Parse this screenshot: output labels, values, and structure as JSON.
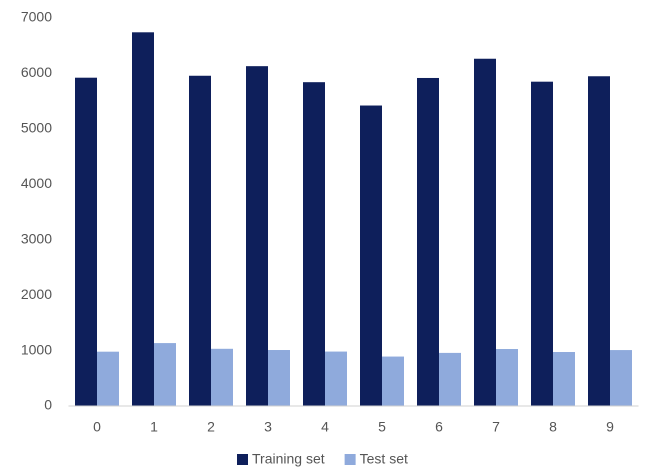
{
  "chart_data": {
    "type": "bar",
    "categories": [
      "0",
      "1",
      "2",
      "3",
      "4",
      "5",
      "6",
      "7",
      "8",
      "9"
    ],
    "series": [
      {
        "name": "Training set",
        "color": "#0e1f5b",
        "values": [
          5923,
          6742,
          5958,
          6131,
          5842,
          5421,
          5918,
          6265,
          5851,
          5949
        ]
      },
      {
        "name": "Test set",
        "color": "#8faadc",
        "values": [
          980,
          1135,
          1032,
          1010,
          982,
          892,
          958,
          1028,
          974,
          1009
        ]
      }
    ],
    "ylim": [
      0,
      7000
    ],
    "yticks": [
      0,
      1000,
      2000,
      3000,
      4000,
      5000,
      6000,
      7000
    ],
    "grid": false,
    "legend": "bottom"
  }
}
